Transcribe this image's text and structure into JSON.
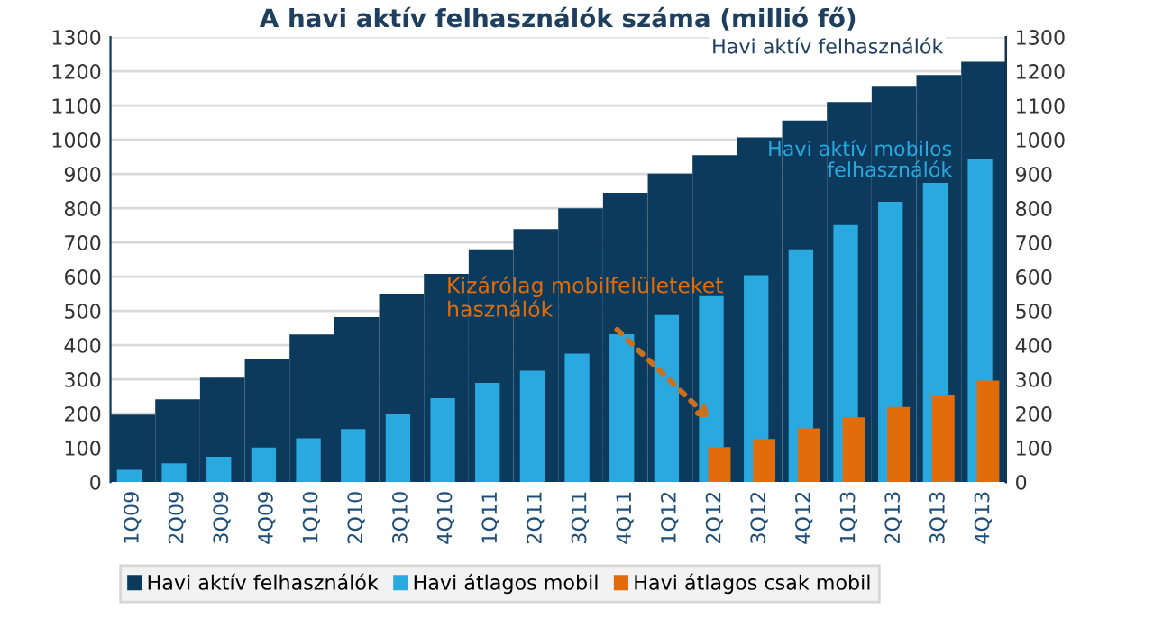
{
  "chart_data": {
    "type": "bar",
    "title": "A havi aktív felhasználók száma (millió fő)",
    "categories": [
      "1Q09",
      "2Q09",
      "3Q09",
      "4Q09",
      "1Q10",
      "2Q10",
      "3Q10",
      "4Q10",
      "1Q11",
      "2Q11",
      "3Q11",
      "4Q11",
      "1Q12",
      "2Q12",
      "3Q12",
      "4Q12",
      "1Q13",
      "2Q13",
      "3Q13",
      "4Q13"
    ],
    "series": [
      {
        "name": "Havi aktív felhasználók",
        "color": "#0b3a5c",
        "values": [
          197,
          242,
          305,
          360,
          431,
          482,
          550,
          608,
          680,
          739,
          800,
          845,
          901,
          955,
          1007,
          1056,
          1110,
          1155,
          1189,
          1228
        ]
      },
      {
        "name": "Havi átlagos mobil",
        "color": "#29a9df",
        "values": [
          36,
          55,
          74,
          101,
          128,
          155,
          200,
          245,
          290,
          325,
          375,
          432,
          488,
          543,
          604,
          680,
          751,
          819,
          874,
          945
        ]
      },
      {
        "name": "Havi átlagos csak mobil",
        "color": "#e36c0a",
        "values": [
          null,
          null,
          null,
          null,
          null,
          null,
          null,
          null,
          null,
          null,
          null,
          null,
          null,
          102,
          126,
          157,
          189,
          219,
          254,
          296
        ]
      }
    ],
    "ylim": [
      0,
      1300
    ],
    "yticks": [
      0,
      100,
      200,
      300,
      400,
      500,
      600,
      700,
      800,
      900,
      1000,
      1100,
      1200,
      1300
    ],
    "y2lim": [
      0,
      1300
    ],
    "y2ticks": [
      0,
      100,
      200,
      300,
      400,
      500,
      600,
      700,
      800,
      900,
      1000,
      1100,
      1200,
      1300
    ],
    "grid": "y",
    "legend": "bottom",
    "annotations": [
      "Havi aktív felhasználók",
      "Havi aktív mobilos\nfelhasználók",
      "Kizárólag mobilfelületeket\nhasználók"
    ]
  }
}
